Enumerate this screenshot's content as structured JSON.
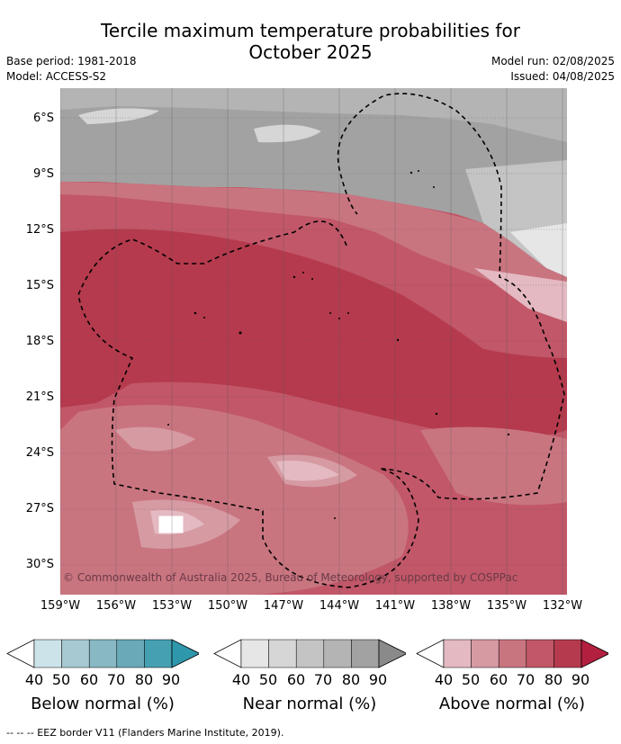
{
  "header": {
    "title_line1": "Tercile maximum temperature probabilities for",
    "title_line2": "October 2025",
    "base_period": "Base period: 1981-2018",
    "model": "Model: ACCESS-S2",
    "model_run": "Model run: 02/08/2025",
    "issued": "Issued: 04/08/2025"
  },
  "map": {
    "lat_ticks": [
      "6°S",
      "9°S",
      "12°S",
      "15°S",
      "18°S",
      "21°S",
      "24°S",
      "27°S",
      "30°S"
    ],
    "lon_ticks": [
      "159°W",
      "156°W",
      "153°W",
      "150°W",
      "147°W",
      "144°W",
      "141°W",
      "138°W",
      "135°W",
      "132°W"
    ],
    "copyright": "© Commonwealth of Australia 2025, Bureau of Meteorology, supported by COSPPac"
  },
  "colorbars": [
    {
      "label": "Below normal (%)",
      "ticks": [
        "40",
        "50",
        "60",
        "70",
        "80",
        "90"
      ],
      "colors": [
        "#ffffff",
        "#cce3e9",
        "#a7cad2",
        "#88b8c3",
        "#6aa9b7",
        "#45a0b2",
        "#2f97ab"
      ]
    },
    {
      "label": "Near normal (%)",
      "ticks": [
        "40",
        "50",
        "60",
        "70",
        "80",
        "90"
      ],
      "colors": [
        "#ffffff",
        "#e6e6e6",
        "#d6d6d6",
        "#c4c4c4",
        "#b4b4b4",
        "#a2a2a2",
        "#8a8a8a"
      ]
    },
    {
      "label": "Above normal (%)",
      "ticks": [
        "40",
        "50",
        "60",
        "70",
        "80",
        "90"
      ],
      "colors": [
        "#ffffff",
        "#e4b9c1",
        "#d69aa3",
        "#c97580",
        "#c15768",
        "#b53a4d",
        "#b3203f"
      ]
    }
  ],
  "footnote": "--  --  -- EEZ border V11 (Flanders Marine Institute, 2019)."
}
